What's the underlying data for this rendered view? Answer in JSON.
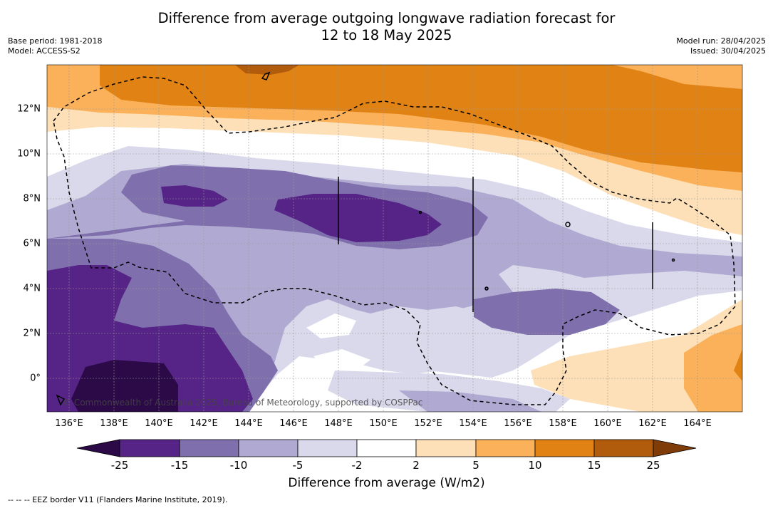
{
  "title_line1": "Difference from average outgoing longwave radiation forecast for",
  "title_line2": "12 to 18 May 2025",
  "base_period": "Base period: 1981-2018",
  "model": "Model: ACCESS-S2",
  "model_run": "Model run: 28/04/2025",
  "issued": "Issued: 30/04/2025",
  "copyright": "© Commonwealth of Australia 2025, Bureau of Meteorology, supported by COSPPac",
  "footnote": "--  --  -- EEZ border V11 (Flanders Marine Institute, 2019).",
  "lat_labels": [
    "12°N",
    "10°N",
    "8°N",
    "6°N",
    "4°N",
    "2°N",
    "0°"
  ],
  "lon_labels": [
    "136°E",
    "138°E",
    "140°E",
    "142°E",
    "144°E",
    "146°E",
    "148°E",
    "150°E",
    "152°E",
    "154°E",
    "156°E",
    "158°E",
    "160°E",
    "162°E",
    "164°E"
  ],
  "colorbar": {
    "label": "Difference from average (W/m2)",
    "ticks": [
      "-25",
      "-15",
      "-10",
      "-5",
      "-2",
      "2",
      "5",
      "10",
      "15",
      "25"
    ],
    "colors": {
      "lt_neg25": "#2b0a47",
      "neg25_neg15": "#562486",
      "neg15_neg10": "#7f70ad",
      "neg10_neg5": "#b0a9d1",
      "neg5_neg2": "#d9d9eb",
      "neg2_2": "#ffffff",
      "p2_5": "#fde0b7",
      "p5_10": "#fab15a",
      "p10_15": "#e08214",
      "p15_25": "#b05c0c",
      "gt_25": "#7f3b08"
    }
  }
}
